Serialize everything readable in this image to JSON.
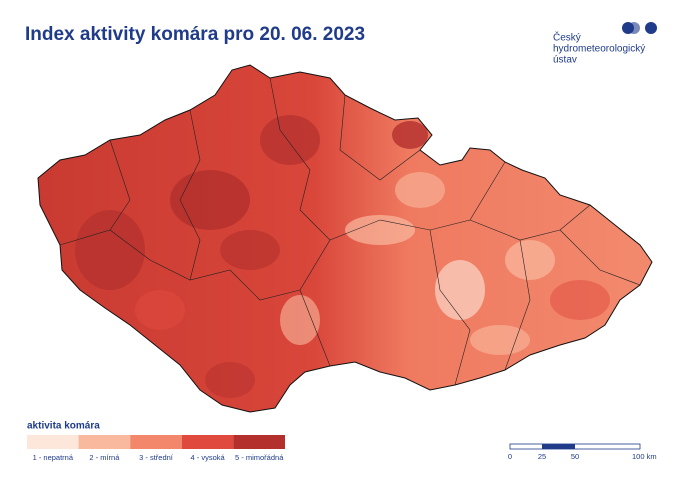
{
  "header": {
    "title": "Index aktivity komára pro 20. 06. 2023"
  },
  "logo": {
    "lines": [
      "Český",
      "hydrometeorologický",
      "ústav"
    ]
  },
  "legend": {
    "title": "aktivita komára",
    "items": [
      {
        "label": "1 - nepatrná",
        "color": "#fde6da"
      },
      {
        "label": "2 - mírná",
        "color": "#f9b99f"
      },
      {
        "label": "3 - střední",
        "color": "#f3876b"
      },
      {
        "label": "4 - vysoká",
        "color": "#e04a3e"
      },
      {
        "label": "5 - mimořádná",
        "color": "#b3302d"
      }
    ]
  },
  "scale_bar": {
    "labels": [
      "0",
      "25",
      "50",
      "100 km"
    ]
  }
}
